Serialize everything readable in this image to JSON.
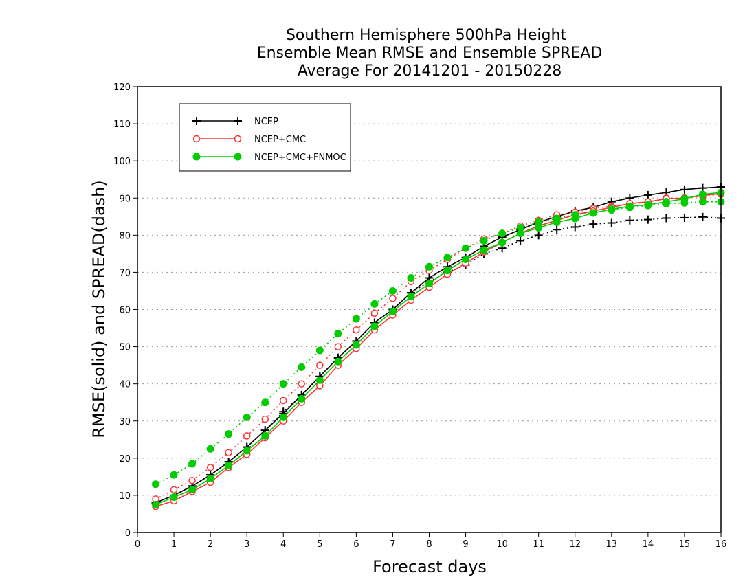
{
  "chart_data": {
    "type": "line",
    "title": [
      "Southern Hemisphere 500hPa Height",
      "Ensemble Mean RMSE and Ensemble SPREAD",
      "Average For 20141201 - 20150228"
    ],
    "xlabel": "Forecast days",
    "ylabel": "RMSE(solid) and SPREAD(dash)",
    "xlim": [
      0,
      16
    ],
    "ylim": [
      0,
      120
    ],
    "xticks": [
      "0",
      "1",
      "2",
      "3",
      "4",
      "5",
      "6",
      "7",
      "8",
      "9",
      "10",
      "11",
      "12",
      "13",
      "14",
      "15",
      "16"
    ],
    "yticks": [
      "0",
      "10",
      "20",
      "30",
      "40",
      "50",
      "60",
      "70",
      "80",
      "90",
      "100",
      "110",
      "120"
    ],
    "grid": "horizontal dotted",
    "legend_position": "top-left",
    "x": [
      0.5,
      1,
      1.5,
      2,
      2.5,
      3,
      3.5,
      4,
      4.5,
      5,
      5.5,
      6,
      6.5,
      7,
      7.5,
      8,
      8.5,
      9,
      9.5,
      10,
      10.5,
      11,
      11.5,
      12,
      12.5,
      13,
      13.5,
      14,
      14.5,
      15,
      15.5,
      16
    ],
    "series": [
      {
        "name": "NCEP",
        "color": "#000000",
        "marker": "plus",
        "rmse": [
          8,
          10,
          12.5,
          15.5,
          19,
          23,
          27.5,
          32,
          37,
          42,
          47,
          51.5,
          56.5,
          60,
          64.5,
          68.5,
          71.5,
          74,
          77,
          79.5,
          81.5,
          83.5,
          85,
          86.5,
          87.5,
          89,
          90,
          90.8,
          91.5,
          92.3,
          92.7,
          93
        ],
        "spread": [
          8,
          10,
          12.5,
          15.5,
          19,
          23,
          27.5,
          32.5,
          37,
          42,
          47,
          51.5,
          56.5,
          60,
          64.5,
          67.5,
          70,
          72,
          75,
          76.5,
          78.5,
          80,
          81.5,
          82.2,
          83,
          83.3,
          84,
          84.2,
          84.6,
          84.7,
          84.9,
          84.6
        ]
      },
      {
        "name": "NCEP+CMC",
        "color": "#ff3333",
        "marker": "open-circle",
        "rmse": [
          7,
          8.5,
          11,
          13.5,
          17.5,
          21,
          25.5,
          30,
          35,
          39.5,
          45,
          49.5,
          54.5,
          58.5,
          62.5,
          66,
          69.5,
          72.5,
          75.5,
          78,
          80.5,
          82.5,
          84,
          85.5,
          86.5,
          87.5,
          88.5,
          89,
          89.8,
          90,
          90.7,
          91.2
        ],
        "spread": [
          9,
          11.5,
          14,
          17.5,
          21.5,
          26,
          30.5,
          35.5,
          40,
          45,
          50,
          54.5,
          59,
          63,
          67.5,
          70.5,
          73.5,
          76.5,
          79,
          80.5,
          82.5,
          84,
          85.5,
          86.2,
          87.2,
          87.8,
          88.5,
          88.8,
          90,
          90,
          90.5,
          91
        ]
      },
      {
        "name": "NCEP+CMC+FNMOC",
        "color": "#00cc00",
        "marker": "filled-circle",
        "rmse": [
          7.5,
          9.5,
          11.5,
          14.5,
          18,
          22,
          26,
          31,
          36,
          41,
          46,
          50.5,
          55.5,
          59.5,
          63.5,
          67,
          70.5,
          73.5,
          76,
          78,
          80.5,
          82,
          83.5,
          84.5,
          86,
          87,
          87.8,
          88.2,
          89,
          89.8,
          91,
          91.5
        ],
        "spread": [
          13,
          15.5,
          18.5,
          22.5,
          26.5,
          31,
          35,
          40,
          44.5,
          49,
          53.5,
          57.5,
          61.5,
          65,
          68.5,
          71.5,
          74,
          76.5,
          78.5,
          80.5,
          82,
          83.5,
          84.5,
          85.5,
          86,
          86.8,
          87.5,
          88,
          88.5,
          88.7,
          89,
          89
        ]
      }
    ]
  }
}
